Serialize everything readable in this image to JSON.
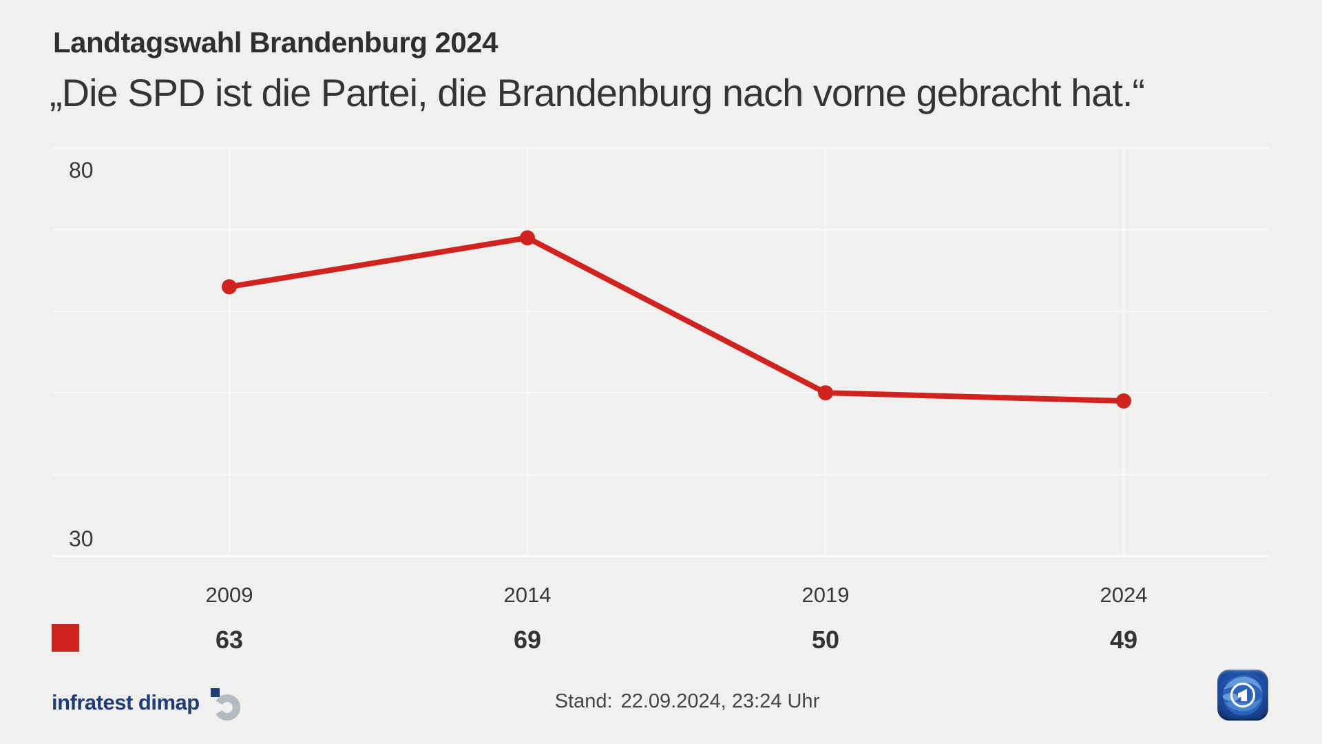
{
  "header": {
    "title": "Landtagswahl Brandenburg 2024",
    "subtitle": "„Die SPD ist die Partei, die Brandenburg nach vorne gebracht hat.“"
  },
  "chart_data": {
    "type": "line",
    "title": "Landtagswahl Brandenburg 2024",
    "subtitle": "„Die SPD ist die Partei, die Brandenburg nach vorne gebracht hat.“",
    "categories": [
      "2009",
      "2014",
      "2019",
      "2024"
    ],
    "series": [
      {
        "name": "SPD",
        "color": "#d0231f",
        "values": [
          63,
          69,
          50,
          49
        ]
      }
    ],
    "ylim": [
      30,
      80
    ],
    "gridline_step": 10,
    "y_tick_label_top": "80",
    "y_tick_label_bottom": "30",
    "grid": true,
    "legend_position": "bottom-left",
    "marker": "circle",
    "background_color": "#f0f0ef",
    "gridline_color": "#f8f8f7"
  },
  "legend": {
    "swatch_color": "#d0231f"
  },
  "footer": {
    "source_brand": "infratest dimap",
    "stand_label": "Stand:",
    "stand_value": "22.09.2024, 23:24 Uhr",
    "broadcaster": "ARD",
    "icons": {
      "infratest_dimap_mark": "blue-square-with-gray-open-ring",
      "ard_logo": "blue-globe-with-white-ring-and-one"
    }
  },
  "colors": {
    "accent_red": "#d0231f",
    "brand_navy": "#1e3c78",
    "brand_gray": "#b4bac0",
    "text_dark": "#2f2f2e",
    "background": "#f0f0ef"
  }
}
